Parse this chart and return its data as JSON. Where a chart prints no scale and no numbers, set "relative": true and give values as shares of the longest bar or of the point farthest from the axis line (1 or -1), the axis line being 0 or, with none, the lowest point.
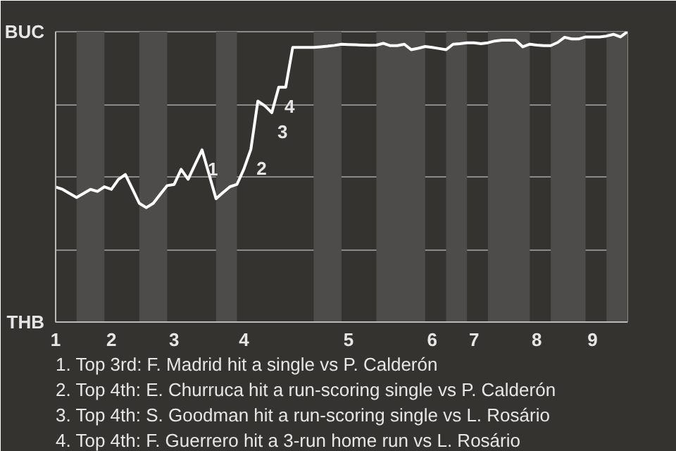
{
  "chart_data": {
    "type": "line",
    "relative": true,
    "categories": [
      "1",
      null,
      null,
      null,
      null,
      null,
      null,
      null,
      "2",
      null,
      null,
      null,
      null,
      null,
      null,
      null,
      null,
      "3",
      null,
      null,
      null,
      null,
      null,
      null,
      null,
      null,
      null,
      "4",
      null,
      null,
      null,
      null,
      null,
      null,
      null,
      null,
      null,
      null,
      null,
      null,
      null,
      null,
      "5",
      null,
      null,
      null,
      null,
      null,
      null,
      null,
      null,
      null,
      null,
      null,
      "6",
      null,
      null,
      null,
      null,
      null,
      "7",
      null,
      null,
      null,
      null,
      null,
      null,
      null,
      null,
      "8",
      null,
      null,
      null,
      null,
      null,
      null,
      null,
      "9",
      null,
      null,
      null,
      null,
      null
    ],
    "series": [
      {
        "color": "#ffffff",
        "values": [
          0.465,
          0.457,
          0.443,
          0.429,
          0.443,
          0.457,
          0.45,
          0.466,
          0.457,
          0.491,
          0.508,
          0.459,
          0.409,
          0.394,
          0.409,
          0.44,
          0.47,
          0.474,
          0.526,
          0.492,
          0.543,
          0.593,
          0.509,
          0.425,
          0.446,
          0.466,
          0.474,
          0.527,
          0.595,
          0.761,
          0.745,
          0.721,
          0.809,
          0.809,
          0.946,
          0.946,
          0.946,
          0.946,
          0.948,
          0.95,
          0.953,
          0.957,
          0.956,
          0.955,
          0.954,
          0.953,
          0.954,
          0.96,
          0.952,
          0.952,
          0.957,
          0.938,
          0.943,
          0.949,
          0.946,
          0.942,
          0.938,
          0.957,
          0.959,
          0.962,
          0.962,
          0.959,
          0.962,
          0.968,
          0.971,
          0.971,
          0.97,
          0.948,
          0.957,
          0.954,
          0.952,
          0.952,
          0.963,
          0.981,
          0.975,
          0.975,
          0.982,
          0.982,
          0.982,
          0.985,
          0.991,
          0.982,
          1.0
        ]
      }
    ],
    "grid": "y",
    "annotations": [
      "BUC",
      "THB",
      "1",
      "2",
      "3",
      "4",
      "1. Top 3rd: F. Madrid hit a single vs P. Calderón",
      "2. Top 4th: E. Churruca hit a run-scoring single vs P. Calderón",
      "3. Top 4th: S. Goodman hit a run-scoring single vs L. Rosário",
      "4. Top 4th: F. Guerrero hit a 3-run home run vs L. Rosário"
    ]
  }
}
